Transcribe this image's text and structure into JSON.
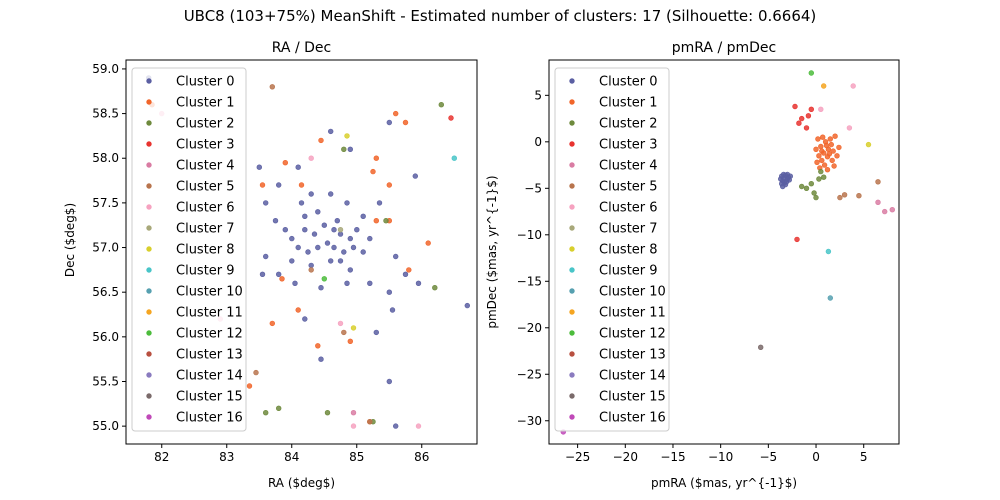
{
  "figure": {
    "title": "UBC8 (103+75%) MeanShift - Estimated number of clusters: 17 (Silhouette: 0.6664)"
  },
  "legend_labels": [
    "Cluster 0",
    "Cluster 1",
    "Cluster 2",
    "Cluster 3",
    "Cluster 4",
    "Cluster 5",
    "Cluster 6",
    "Cluster 7",
    "Cluster 8",
    "Cluster 9",
    "Cluster 10",
    "Cluster 11",
    "Cluster 12",
    "Cluster 13",
    "Cluster 14",
    "Cluster 15",
    "Cluster 16"
  ],
  "cluster_colors": [
    "#5b5fa2",
    "#f1652a",
    "#6e8a3d",
    "#e8332f",
    "#d97ca3",
    "#b8744d",
    "#f6a2c0",
    "#a8a87a",
    "#d8cf2c",
    "#49c5c8",
    "#56a0b0",
    "#f5a521",
    "#4cbc3c",
    "#b85040",
    "#8a7bbf",
    "#7a6a6a",
    "#c049b8"
  ],
  "chart_data": [
    {
      "type": "scatter",
      "title": "RA / Dec",
      "xlabel": "RA ($deg$)",
      "ylabel": "Dec ($deg$)",
      "xlim": [
        81.45,
        86.85
      ],
      "ylim": [
        54.8,
        59.1
      ],
      "xticks": [
        82,
        83,
        84,
        85,
        86
      ],
      "yticks": [
        55.0,
        55.5,
        56.0,
        56.5,
        57.0,
        57.5,
        58.0,
        58.5,
        59.0
      ],
      "legend": "upper-left",
      "series": [
        {
          "name": "Cluster 0",
          "points": [
            [
              81.8,
              58.9
            ],
            [
              84.6,
              58.3
            ],
            [
              84.9,
              58.1
            ],
            [
              85.5,
              58.4
            ],
            [
              85.9,
              57.8
            ],
            [
              83.5,
              57.9
            ],
            [
              83.6,
              57.5
            ],
            [
              83.8,
              57.7
            ],
            [
              84.1,
              57.9
            ],
            [
              84.3,
              57.6
            ],
            [
              84.6,
              57.6
            ],
            [
              84.4,
              57.4
            ],
            [
              84.2,
              57.35
            ],
            [
              84.7,
              57.3
            ],
            [
              84.85,
              57.5
            ],
            [
              85.1,
              57.35
            ],
            [
              85.35,
              57.5
            ],
            [
              83.9,
              57.2
            ],
            [
              84.0,
              57.1
            ],
            [
              84.2,
              57.2
            ],
            [
              84.35,
              57.15
            ],
            [
              84.5,
              57.25
            ],
            [
              84.65,
              57.2
            ],
            [
              84.75,
              57.15
            ],
            [
              84.9,
              57.1
            ],
            [
              85.0,
              57.2
            ],
            [
              85.2,
              57.1
            ],
            [
              84.55,
              57.05
            ],
            [
              84.65,
              57.0
            ],
            [
              84.8,
              56.95
            ],
            [
              84.4,
              57.0
            ],
            [
              84.25,
              56.95
            ],
            [
              84.1,
              57.0
            ],
            [
              84.95,
              57.0
            ],
            [
              85.1,
              56.95
            ],
            [
              84.6,
              56.85
            ],
            [
              84.3,
              56.8
            ],
            [
              84.9,
              56.75
            ],
            [
              85.6,
              56.9
            ],
            [
              85.75,
              56.7
            ],
            [
              83.6,
              56.9
            ],
            [
              83.8,
              56.7
            ],
            [
              84.05,
              56.6
            ],
            [
              84.45,
              56.55
            ],
            [
              84.85,
              56.6
            ],
            [
              85.5,
              56.5
            ],
            [
              85.95,
              56.6
            ],
            [
              86.7,
              56.35
            ],
            [
              85.55,
              56.3
            ],
            [
              84.2,
              56.2
            ],
            [
              84.45,
              55.75
            ],
            [
              85.3,
              56.05
            ],
            [
              85.5,
              55.5
            ],
            [
              85.6,
              55.0
            ],
            [
              83.55,
              56.7
            ],
            [
              84.15,
              57.5
            ],
            [
              85.2,
              56.6
            ],
            [
              83.75,
              57.3
            ],
            [
              84.0,
              56.85
            ],
            [
              84.75,
              56.85
            ]
          ]
        },
        {
          "name": "Cluster 1",
          "points": [
            [
              81.85,
              58.6
            ],
            [
              83.9,
              57.95
            ],
            [
              84.45,
              58.2
            ],
            [
              85.3,
              58.0
            ],
            [
              85.25,
              57.85
            ],
            [
              85.5,
              57.7
            ],
            [
              85.6,
              58.5
            ],
            [
              85.75,
              58.4
            ],
            [
              84.15,
              57.7
            ],
            [
              83.55,
              57.7
            ],
            [
              85.3,
              57.3
            ],
            [
              85.5,
              57.3
            ],
            [
              86.1,
              57.05
            ],
            [
              85.8,
              56.75
            ],
            [
              83.85,
              56.65
            ],
            [
              83.7,
              56.15
            ],
            [
              84.4,
              55.9
            ],
            [
              84.9,
              55.95
            ],
            [
              83.35,
              55.45
            ],
            [
              84.1,
              56.3
            ],
            [
              85.2,
              55.05
            ]
          ]
        },
        {
          "name": "Cluster 2",
          "points": [
            [
              86.3,
              58.6
            ],
            [
              84.8,
              58.1
            ],
            [
              85.45,
              57.3
            ],
            [
              86.2,
              56.55
            ],
            [
              83.6,
              55.15
            ],
            [
              83.8,
              55.2
            ],
            [
              84.55,
              55.15
            ],
            [
              85.25,
              55.05
            ]
          ]
        },
        {
          "name": "Cluster 3",
          "points": [
            [
              86.45,
              58.45
            ]
          ]
        },
        {
          "name": "Cluster 4",
          "points": [
            [
              84.95,
              55.15
            ]
          ]
        },
        {
          "name": "Cluster 5",
          "points": [
            [
              83.7,
              58.8
            ],
            [
              84.3,
              56.75
            ],
            [
              84.8,
              56.05
            ],
            [
              83.45,
              55.6
            ],
            [
              85.2,
              55.05
            ]
          ]
        },
        {
          "name": "Cluster 6",
          "points": [
            [
              84.3,
              58.0
            ],
            [
              84.75,
              56.15
            ],
            [
              84.95,
              55.0
            ],
            [
              85.95,
              55.0
            ],
            [
              82.0,
              58.5
            ],
            [
              82.9,
              56.2
            ]
          ]
        },
        {
          "name": "Cluster 7",
          "points": [
            [
              84.75,
              57.2
            ]
          ]
        },
        {
          "name": "Cluster 8",
          "points": [
            [
              84.85,
              58.25
            ],
            [
              84.95,
              56.1
            ]
          ]
        },
        {
          "name": "Cluster 9",
          "points": [
            [
              86.5,
              58.0
            ]
          ]
        },
        {
          "name": "Cluster 10",
          "points": []
        },
        {
          "name": "Cluster 11",
          "points": []
        },
        {
          "name": "Cluster 12",
          "points": [
            [
              84.5,
              56.65
            ]
          ]
        },
        {
          "name": "Cluster 13",
          "points": []
        },
        {
          "name": "Cluster 14",
          "points": []
        },
        {
          "name": "Cluster 15",
          "points": []
        },
        {
          "name": "Cluster 16",
          "points": []
        }
      ]
    },
    {
      "type": "scatter",
      "title": "pmRA / pmDec",
      "xlabel": "pmRA ($mas, yr^{-1}$)",
      "ylabel": "pmDec ($mas, yr^{-1}$)",
      "xlim": [
        -28.0,
        8.7
      ],
      "ylim": [
        -32.5,
        8.8
      ],
      "xticks": [
        -25,
        -20,
        -15,
        -10,
        -5,
        0,
        5
      ],
      "yticks": [
        5,
        0,
        -5,
        -10,
        -15,
        -20,
        -25,
        -30
      ],
      "legend": "upper-left",
      "series": [
        {
          "name": "Cluster 0",
          "points": [
            [
              -3.6,
              -3.7
            ],
            [
              -3.4,
              -3.9
            ],
            [
              -3.2,
              -3.6
            ],
            [
              -3.5,
              -4.2
            ],
            [
              -3.0,
              -4.0
            ],
            [
              -3.3,
              -4.4
            ],
            [
              -3.7,
              -4.0
            ],
            [
              -2.9,
              -3.8
            ],
            [
              -3.1,
              -4.3
            ],
            [
              -3.4,
              -3.5
            ],
            [
              -2.8,
              -4.1
            ],
            [
              -3.6,
              -4.5
            ],
            [
              -3.2,
              -4.6
            ],
            [
              -3.0,
              -3.5
            ],
            [
              -3.5,
              -4.8
            ],
            [
              -2.7,
              -3.7
            ]
          ]
        },
        {
          "name": "Cluster 1",
          "points": [
            [
              0.2,
              0.3
            ],
            [
              0.5,
              -0.5
            ],
            [
              1.0,
              0.0
            ],
            [
              0.8,
              -1.2
            ],
            [
              1.3,
              -0.8
            ],
            [
              0.3,
              -1.5
            ],
            [
              1.6,
              -0.3
            ],
            [
              1.2,
              -1.6
            ],
            [
              0.6,
              -2.0
            ],
            [
              1.8,
              -1.0
            ],
            [
              0.0,
              -0.8
            ],
            [
              2.0,
              0.6
            ],
            [
              1.5,
              0.3
            ],
            [
              0.9,
              -2.5
            ],
            [
              1.7,
              -2.0
            ],
            [
              2.2,
              -1.5
            ],
            [
              0.4,
              -2.8
            ],
            [
              1.1,
              -0.4
            ],
            [
              0.7,
              0.5
            ],
            [
              1.4,
              -1.3
            ],
            [
              0.1,
              -2.2
            ],
            [
              2.4,
              -0.6
            ],
            [
              1.9,
              -2.6
            ],
            [
              0.6,
              -1.0
            ],
            [
              1.2,
              -3.0
            ]
          ]
        },
        {
          "name": "Cluster 2",
          "points": [
            [
              -1.0,
              -5.0
            ],
            [
              -0.5,
              -4.5
            ],
            [
              0.3,
              -4.0
            ],
            [
              0.8,
              -3.8
            ],
            [
              -0.2,
              -5.5
            ],
            [
              0.0,
              -6.0
            ],
            [
              -1.5,
              -4.8
            ],
            [
              0.5,
              -3.2
            ]
          ]
        },
        {
          "name": "Cluster 3",
          "points": [
            [
              -2.2,
              3.8
            ],
            [
              -1.5,
              2.5
            ],
            [
              -0.8,
              2.8
            ],
            [
              -1.8,
              2.0
            ],
            [
              -0.5,
              3.5
            ],
            [
              -2.0,
              -10.5
            ],
            [
              -1.0,
              1.5
            ]
          ]
        },
        {
          "name": "Cluster 4",
          "points": [
            [
              6.5,
              -6.5
            ],
            [
              7.2,
              -7.5
            ],
            [
              8.0,
              -7.3
            ]
          ]
        },
        {
          "name": "Cluster 5",
          "points": [
            [
              2.5,
              -6.0
            ],
            [
              3.0,
              -5.7
            ],
            [
              4.5,
              -5.8
            ],
            [
              6.5,
              -4.3
            ]
          ]
        },
        {
          "name": "Cluster 6",
          "points": [
            [
              3.9,
              6.0
            ],
            [
              3.5,
              1.5
            ],
            [
              0.5,
              3.5
            ]
          ]
        },
        {
          "name": "Cluster 7",
          "points": []
        },
        {
          "name": "Cluster 8",
          "points": [
            [
              5.5,
              -0.3
            ]
          ]
        },
        {
          "name": "Cluster 9",
          "points": [
            [
              1.3,
              -11.8
            ]
          ]
        },
        {
          "name": "Cluster 10",
          "points": [
            [
              1.5,
              -16.8
            ]
          ]
        },
        {
          "name": "Cluster 11",
          "points": [
            [
              0.8,
              6.0
            ]
          ]
        },
        {
          "name": "Cluster 12",
          "points": [
            [
              -0.5,
              7.4
            ]
          ]
        },
        {
          "name": "Cluster 13",
          "points": []
        },
        {
          "name": "Cluster 14",
          "points": []
        },
        {
          "name": "Cluster 15",
          "points": [
            [
              -5.8,
              -22.1
            ]
          ]
        },
        {
          "name": "Cluster 16",
          "points": [
            [
              -26.5,
              -31.2
            ]
          ]
        }
      ]
    }
  ]
}
